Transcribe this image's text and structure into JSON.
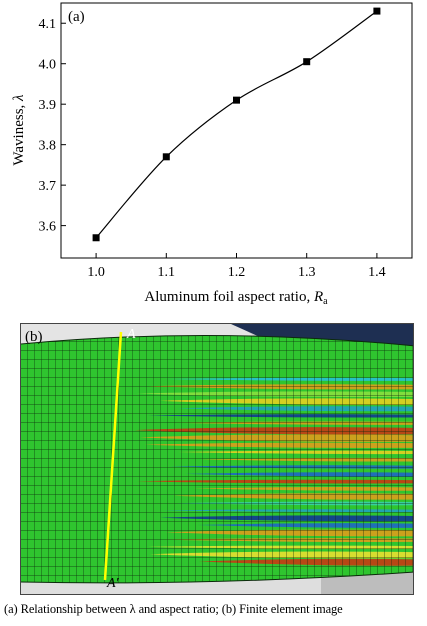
{
  "chart_data": {
    "type": "line",
    "panel_label": "(a)",
    "x": [
      1.0,
      1.1,
      1.2,
      1.3,
      1.4
    ],
    "values": [
      3.57,
      3.77,
      3.91,
      4.005,
      4.13
    ],
    "x_ticks": [
      "1.0",
      "1.1",
      "1.2",
      "1.3",
      "1.4"
    ],
    "y_ticks": [
      "3.6",
      "3.7",
      "3.8",
      "3.9",
      "4.0",
      "4.1"
    ],
    "xlim": [
      0.95,
      1.45
    ],
    "ylim": [
      3.52,
      4.15
    ],
    "xlabel": "Aluminum foil aspect ratio, ",
    "xlabel_var": "R",
    "xlabel_sub": "a",
    "ylabel": "Waviness, ",
    "ylabel_var": "λ",
    "marker": "square",
    "line_color": "#000000",
    "grid": false
  },
  "figure_b": {
    "panel_label": "(b)",
    "section_top_label": "A",
    "section_bottom_label": "A′",
    "mesh_color": "#2fc52f",
    "section_line_color": "#ffff00"
  },
  "caption": "(a) Relationship between λ and aspect ratio; (b) Finite element image"
}
